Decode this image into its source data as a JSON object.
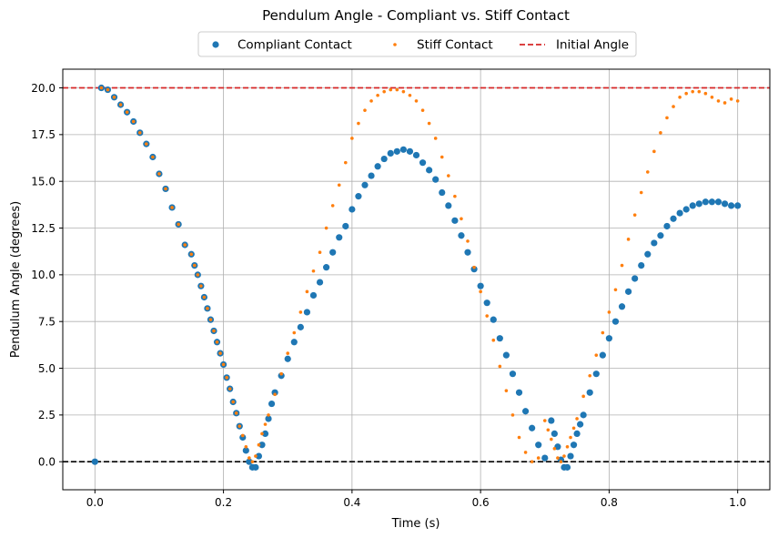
{
  "chart_data": {
    "type": "scatter",
    "title": "Pendulum Angle - Compliant vs. Stiff Contact",
    "xlabel": "Time (s)",
    "ylabel": "Pendulum Angle (degrees)",
    "xlim": [
      -0.05,
      1.05
    ],
    "ylim": [
      -1.5,
      21.0
    ],
    "xticks": [
      0.0,
      0.2,
      0.4,
      0.6,
      0.8,
      1.0
    ],
    "xtick_labels": [
      "0.0",
      "0.2",
      "0.4",
      "0.6",
      "0.8",
      "1.0"
    ],
    "yticks": [
      0.0,
      2.5,
      5.0,
      7.5,
      10.0,
      12.5,
      15.0,
      17.5,
      20.0
    ],
    "ytick_labels": [
      "0.0",
      "2.5",
      "5.0",
      "7.5",
      "10.0",
      "12.5",
      "15.0",
      "17.5",
      "20.0"
    ],
    "grid": true,
    "legend_placement": "top-center, above plot",
    "series": [
      {
        "name": "Compliant Contact",
        "color": "#1f77b4",
        "marker": "circle-large",
        "x": [
          0.0,
          0.01,
          0.02,
          0.03,
          0.04,
          0.05,
          0.06,
          0.07,
          0.08,
          0.09,
          0.1,
          0.11,
          0.12,
          0.13,
          0.14,
          0.15,
          0.155,
          0.16,
          0.165,
          0.17,
          0.175,
          0.18,
          0.185,
          0.19,
          0.195,
          0.2,
          0.205,
          0.21,
          0.215,
          0.22,
          0.225,
          0.23,
          0.235,
          0.24,
          0.245,
          0.25,
          0.255,
          0.26,
          0.265,
          0.27,
          0.275,
          0.28,
          0.29,
          0.3,
          0.31,
          0.32,
          0.33,
          0.34,
          0.35,
          0.36,
          0.37,
          0.38,
          0.39,
          0.4,
          0.41,
          0.42,
          0.43,
          0.44,
          0.45,
          0.46,
          0.47,
          0.48,
          0.49,
          0.5,
          0.51,
          0.52,
          0.53,
          0.54,
          0.55,
          0.56,
          0.57,
          0.58,
          0.59,
          0.6,
          0.61,
          0.62,
          0.63,
          0.64,
          0.65,
          0.66,
          0.67,
          0.68,
          0.69,
          0.7,
          0.71,
          0.715,
          0.72,
          0.725,
          0.73,
          0.735,
          0.74,
          0.745,
          0.75,
          0.755,
          0.76,
          0.77,
          0.78,
          0.79,
          0.8,
          0.81,
          0.82,
          0.83,
          0.84,
          0.85,
          0.86,
          0.87,
          0.88,
          0.89,
          0.9,
          0.91,
          0.92,
          0.93,
          0.94,
          0.95,
          0.96,
          0.97,
          0.98,
          0.99,
          1.0
        ],
        "y": [
          0.0,
          20.0,
          19.9,
          19.5,
          19.1,
          18.7,
          18.2,
          17.6,
          17.0,
          16.3,
          15.4,
          14.6,
          13.6,
          12.7,
          11.6,
          11.1,
          10.5,
          10.0,
          9.4,
          8.8,
          8.2,
          7.6,
          7.0,
          6.4,
          5.8,
          5.2,
          4.5,
          3.9,
          3.2,
          2.6,
          1.9,
          1.3,
          0.6,
          0.0,
          -0.3,
          -0.3,
          0.3,
          0.9,
          1.5,
          2.3,
          3.1,
          3.7,
          4.6,
          5.5,
          6.4,
          7.2,
          8.0,
          8.9,
          9.6,
          10.4,
          11.2,
          12.0,
          12.6,
          13.5,
          14.2,
          14.8,
          15.3,
          15.8,
          16.2,
          16.5,
          16.6,
          16.7,
          16.6,
          16.4,
          16.0,
          15.6,
          15.1,
          14.4,
          13.7,
          12.9,
          12.1,
          11.2,
          10.3,
          9.4,
          8.5,
          7.6,
          6.6,
          5.7,
          4.7,
          3.7,
          2.7,
          1.8,
          0.9,
          0.2,
          2.2,
          1.5,
          0.8,
          0.1,
          -0.3,
          -0.3,
          0.3,
          0.9,
          1.5,
          2.0,
          2.5,
          3.7,
          4.7,
          5.7,
          6.6,
          7.5,
          8.3,
          9.1,
          9.8,
          10.5,
          11.1,
          11.7,
          12.1,
          12.6,
          13.0,
          13.3,
          13.5,
          13.7,
          13.8,
          13.9,
          13.9,
          13.9,
          13.8,
          13.7,
          13.7
        ]
      },
      {
        "name": "Stiff Contact",
        "color": "#ff7f0e",
        "marker": "circle-small",
        "x": [
          0.01,
          0.02,
          0.03,
          0.04,
          0.05,
          0.06,
          0.07,
          0.08,
          0.09,
          0.1,
          0.11,
          0.12,
          0.13,
          0.14,
          0.15,
          0.155,
          0.16,
          0.165,
          0.17,
          0.175,
          0.18,
          0.185,
          0.19,
          0.195,
          0.2,
          0.205,
          0.21,
          0.215,
          0.22,
          0.225,
          0.23,
          0.235,
          0.24,
          0.245,
          0.25,
          0.255,
          0.26,
          0.265,
          0.27,
          0.28,
          0.29,
          0.3,
          0.31,
          0.32,
          0.33,
          0.34,
          0.35,
          0.36,
          0.37,
          0.38,
          0.39,
          0.4,
          0.41,
          0.42,
          0.43,
          0.44,
          0.45,
          0.46,
          0.47,
          0.48,
          0.49,
          0.5,
          0.51,
          0.52,
          0.53,
          0.54,
          0.55,
          0.56,
          0.57,
          0.58,
          0.59,
          0.6,
          0.61,
          0.62,
          0.63,
          0.64,
          0.65,
          0.66,
          0.67,
          0.68,
          0.69,
          0.7,
          0.705,
          0.71,
          0.715,
          0.72,
          0.725,
          0.73,
          0.735,
          0.74,
          0.745,
          0.75,
          0.76,
          0.77,
          0.78,
          0.79,
          0.8,
          0.81,
          0.82,
          0.83,
          0.84,
          0.85,
          0.86,
          0.87,
          0.88,
          0.89,
          0.9,
          0.91,
          0.92,
          0.93,
          0.94,
          0.95,
          0.96,
          0.97,
          0.98,
          0.99,
          1.0
        ],
        "y": [
          20.0,
          19.9,
          19.5,
          19.1,
          18.7,
          18.2,
          17.6,
          17.0,
          16.3,
          15.4,
          14.6,
          13.6,
          12.7,
          11.6,
          11.1,
          10.5,
          10.0,
          9.4,
          8.8,
          8.2,
          7.6,
          7.0,
          6.4,
          5.8,
          5.2,
          4.5,
          3.9,
          3.2,
          2.6,
          1.9,
          1.4,
          0.8,
          0.2,
          0.0,
          0.3,
          0.9,
          1.5,
          2.0,
          2.5,
          3.6,
          4.7,
          5.8,
          6.9,
          8.0,
          9.1,
          10.2,
          11.2,
          12.5,
          13.7,
          14.8,
          16.0,
          17.3,
          18.1,
          18.8,
          19.3,
          19.6,
          19.8,
          19.9,
          19.9,
          19.8,
          19.6,
          19.3,
          18.8,
          18.1,
          17.3,
          16.3,
          15.3,
          14.2,
          13.0,
          11.8,
          10.4,
          9.1,
          7.8,
          6.5,
          5.1,
          3.8,
          2.5,
          1.3,
          0.5,
          0.0,
          0.2,
          2.2,
          1.7,
          1.2,
          0.7,
          0.2,
          0.0,
          0.3,
          0.8,
          1.3,
          1.8,
          2.3,
          3.5,
          4.6,
          5.7,
          6.9,
          8.0,
          9.2,
          10.5,
          11.9,
          13.2,
          14.4,
          15.5,
          16.6,
          17.6,
          18.4,
          19.0,
          19.5,
          19.7,
          19.8,
          19.8,
          19.7,
          19.5,
          19.3,
          19.2,
          19.4,
          19.3
        ]
      },
      {
        "name": "Initial Angle",
        "color": "#d62728",
        "line": "dashed",
        "y_const": 20.0
      },
      {
        "color": "#000000",
        "line": "dashed",
        "y_const": 0.0
      }
    ]
  }
}
